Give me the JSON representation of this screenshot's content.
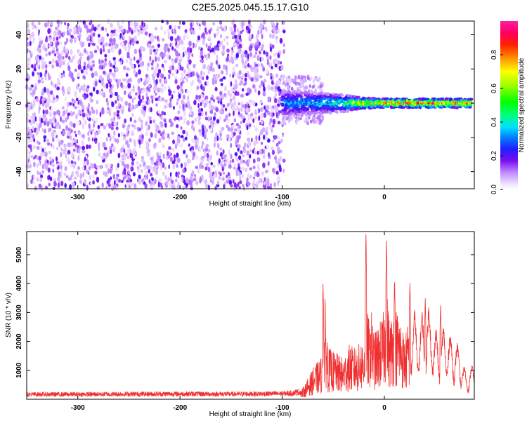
{
  "title": "C2E5.2025.045.15.17.G10",
  "colors": {
    "snr_line": "#f03030",
    "frame": "#000000",
    "background": "#ffffff"
  },
  "chart_data": [
    {
      "type": "heatmap",
      "name": "spectrogram",
      "xlabel": "Height of straight line (km)",
      "ylabel": "Frequency (Hz)",
      "xlim": [
        -350,
        88
      ],
      "ylim": [
        -50,
        48
      ],
      "xticks": [
        -300,
        -200,
        -100,
        0
      ],
      "yticks": [
        -40,
        -20,
        0,
        20,
        40
      ],
      "noise_region_x": [
        -350,
        -100
      ],
      "noise_frequency_span": [
        -50,
        48
      ],
      "signal_ridge": [
        {
          "x": -100,
          "spread": 8,
          "amp": 0.3
        },
        {
          "x": -80,
          "spread": 7,
          "amp": 0.35
        },
        {
          "x": -60,
          "spread": 6,
          "amp": 0.4
        },
        {
          "x": -40,
          "spread": 5,
          "amp": 0.45
        },
        {
          "x": -20,
          "spread": 3,
          "amp": 0.75
        },
        {
          "x": 0,
          "spread": 2.5,
          "amp": 0.85
        },
        {
          "x": 20,
          "spread": 2.5,
          "amp": 0.9
        },
        {
          "x": 40,
          "spread": 2.5,
          "amp": 0.9
        },
        {
          "x": 60,
          "spread": 2.5,
          "amp": 0.9
        },
        {
          "x": 85,
          "spread": 2.5,
          "amp": 0.85
        }
      ],
      "colorbar": {
        "label": "Normalized spectral amplitude",
        "range": [
          0,
          1
        ],
        "ticks": [
          0.0,
          0.2,
          0.4,
          0.6,
          0.8
        ],
        "tick_labels": [
          "0.0",
          "0.2",
          "0.4",
          "0.6",
          "0.8"
        ]
      }
    },
    {
      "type": "line",
      "name": "snr",
      "xlabel": "Height of straight line (km)",
      "ylabel": "SNR (10 * v/v)",
      "xlim": [
        -350,
        88
      ],
      "ylim": [
        0,
        5800
      ],
      "xticks": [
        -300,
        -200,
        -100,
        0
      ],
      "yticks": [
        1000,
        2000,
        3000,
        4000,
        5000
      ],
      "series": [
        {
          "name": "SNR",
          "x": [
            -350,
            -300,
            -250,
            -200,
            -150,
            -100,
            -90,
            -80,
            -75,
            -70,
            -65,
            -60,
            -58,
            -55,
            -50,
            -45,
            -40,
            -35,
            -30,
            -25,
            -20,
            -18,
            -15,
            -12,
            -10,
            -5,
            0,
            2,
            5,
            10,
            15,
            20,
            25,
            30,
            35,
            40,
            45,
            50,
            55,
            60,
            65,
            70,
            75,
            80,
            85,
            88
          ],
          "y": [
            200,
            200,
            210,
            220,
            210,
            230,
            250,
            320,
            600,
            900,
            1100,
            1300,
            2900,
            1500,
            1400,
            1300,
            1200,
            1600,
            1500,
            1600,
            1800,
            2800,
            2300,
            2600,
            1900,
            2200,
            2600,
            3300,
            2300,
            2700,
            2500,
            1800,
            2500,
            2600,
            2400,
            2900,
            2700,
            2100,
            1900,
            2300,
            1900,
            1800,
            1300,
            800,
            1000,
            1100
          ]
        }
      ],
      "spikes": [
        {
          "x": -60,
          "y": 4000
        },
        {
          "x": -18,
          "y": 5800
        },
        {
          "x": 2,
          "y": 5600
        },
        {
          "x": 10,
          "y": 4200
        },
        {
          "x": 25,
          "y": 4100
        },
        {
          "x": 40,
          "y": 3500
        },
        {
          "x": 55,
          "y": 3300
        }
      ]
    }
  ]
}
